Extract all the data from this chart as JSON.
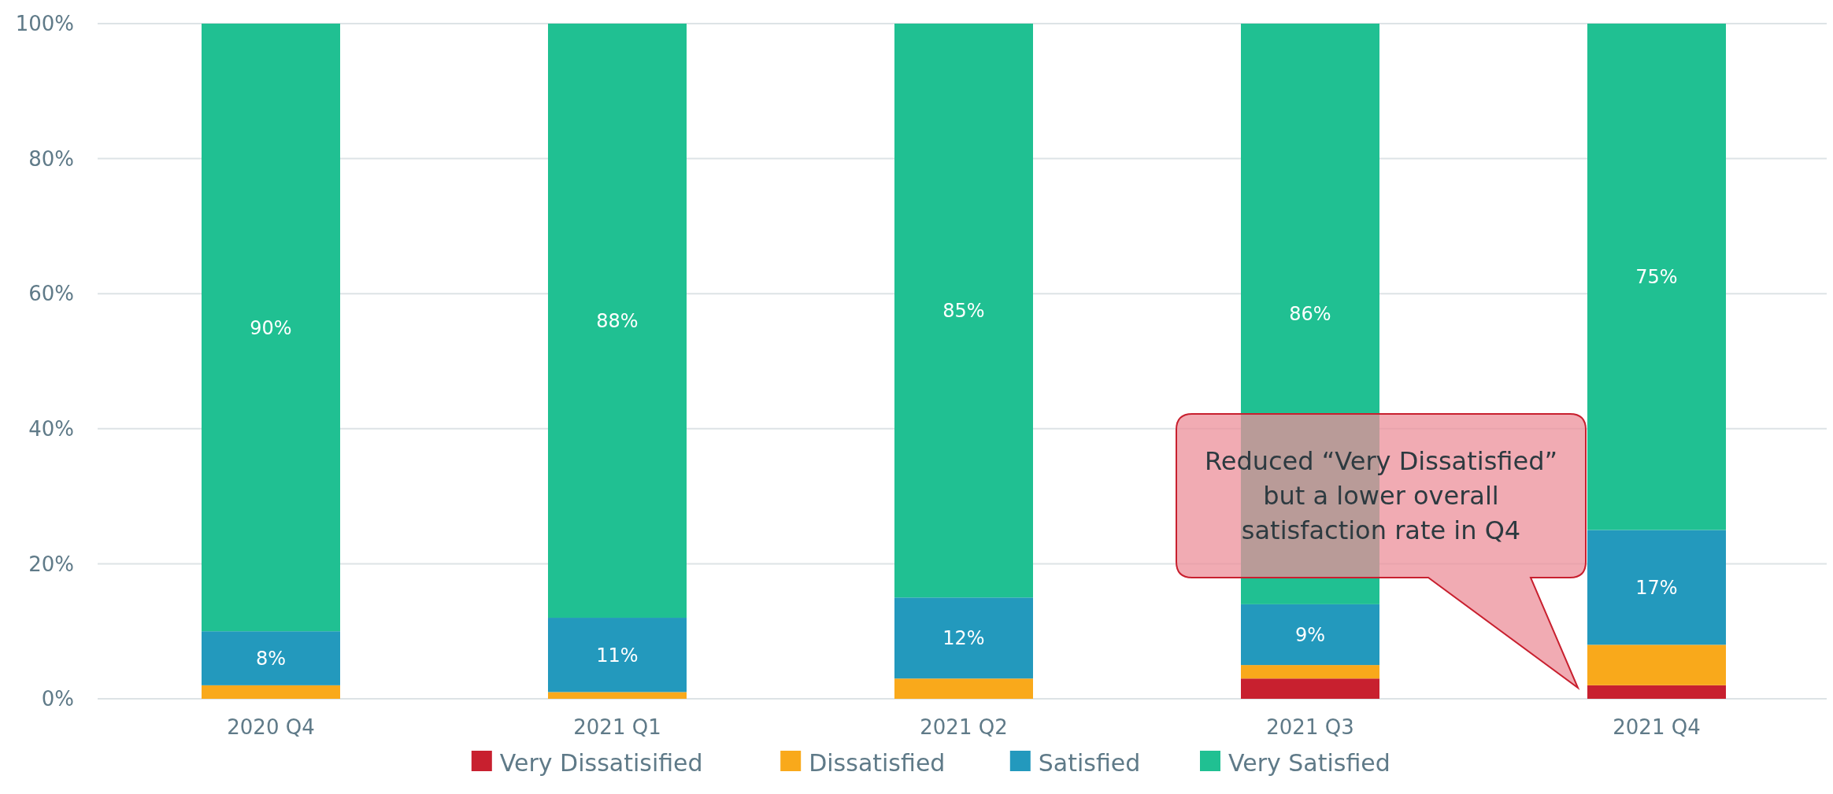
{
  "chart_data": {
    "type": "bar",
    "stacked": true,
    "categories": [
      "2020 Q4",
      "2021 Q1",
      "2021 Q2",
      "2021 Q3",
      "2021 Q4"
    ],
    "series": [
      {
        "name": "Very Dissatisified",
        "color": "#c8202f",
        "values": [
          0,
          0,
          0,
          3,
          2
        ]
      },
      {
        "name": "Dissatisfied",
        "color": "#f9a91b",
        "values": [
          2,
          1,
          3,
          2,
          6
        ]
      },
      {
        "name": "Satisfied",
        "color": "#2399bd",
        "values": [
          8,
          11,
          12,
          9,
          17
        ],
        "value_labels": [
          "8%",
          "11%",
          "12%",
          "9%",
          "17%"
        ]
      },
      {
        "name": "Very Satisfied",
        "color": "#20c092",
        "values": [
          90,
          88,
          85,
          86,
          75
        ],
        "value_labels": [
          "90%",
          "88%",
          "85%",
          "86%",
          "75%"
        ]
      }
    ],
    "ylim": [
      0,
      100
    ],
    "yticks": [
      {
        "value": 0,
        "label": "0%"
      },
      {
        "value": 20,
        "label": "20%"
      },
      {
        "value": 40,
        "label": "40%"
      },
      {
        "value": 60,
        "label": "60%"
      },
      {
        "value": 80,
        "label": "80%"
      },
      {
        "value": 100,
        "label": "100%"
      }
    ],
    "grid": "y",
    "legend": "bottom",
    "annotations": [
      "Reduced “Very Dissatisfied” but a lower overall satisfaction rate in Q4"
    ]
  }
}
